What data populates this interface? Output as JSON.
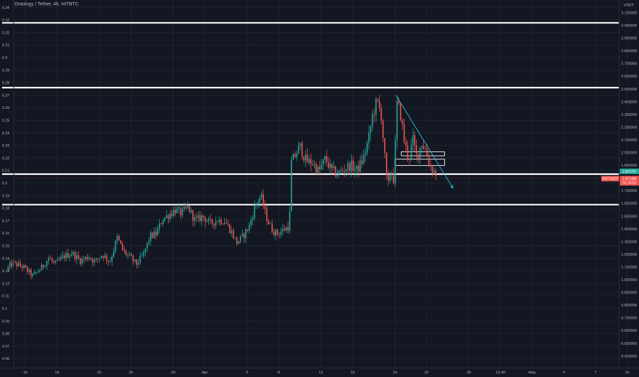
{
  "title": "Ontology / Tether, 4h, HITBTC",
  "colors": {
    "background": "#131722",
    "grid": "#1f2330",
    "up": "#26a69a",
    "down": "#ef5350",
    "level_line": "#ffffff",
    "trendline": "#26c6da",
    "axis_text": "#b2b5be"
  },
  "chart_data": {
    "type": "candlestick",
    "grid": true,
    "left_axis": {
      "ticks": [
        "0.34",
        "0.33",
        "0.32",
        "0.31",
        "0.3",
        "0.29",
        "0.28",
        "0.27",
        "0.26",
        "0.25",
        "0.24",
        "0.23",
        "0.22",
        "0.21",
        "0.2",
        "0.19",
        "0.18",
        "0.17",
        "0.16",
        "0.15",
        "0.14",
        "0.13",
        "0.12",
        "0.11",
        "0.1",
        "0.09",
        "0.08",
        "0.07",
        "0.06"
      ]
    },
    "right_axis": {
      "unit": "USDT",
      "ticks": [
        "3.100000",
        "3.000000",
        "2.900000",
        "2.800000",
        "2.700000",
        "2.600000",
        "2.500000",
        "2.400000",
        "2.300000",
        "2.200000",
        "2.100000",
        "2.000000",
        "1.900000",
        "1.800000",
        "1.700000",
        "1.600000",
        "1.500000",
        "1.400000",
        "1.300000",
        "1.200000",
        "1.100000",
        "1.000000",
        "0.900000",
        "0.800000",
        "0.700000",
        "0.600000",
        "0.500000",
        "0.400000"
      ]
    },
    "x_axis": {
      "ticks": [
        {
          "label": "15",
          "day": 15
        },
        {
          "label": "18",
          "day": 18
        },
        {
          "label": "22",
          "day": 22
        },
        {
          "label": "25",
          "day": 25
        },
        {
          "label": "29",
          "day": 29
        },
        {
          "label": "Apr",
          "day": 32
        },
        {
          "label": "5",
          "day": 36
        },
        {
          "label": "8",
          "day": 39
        },
        {
          "label": "12",
          "day": 43
        },
        {
          "label": "15",
          "day": 46
        },
        {
          "label": "19",
          "day": 50
        },
        {
          "label": "22",
          "day": 53
        },
        {
          "label": "26",
          "day": 57
        },
        {
          "label": "12:30",
          "day": 60
        },
        {
          "label": "May",
          "day": 63
        },
        {
          "label": "4",
          "day": 66
        },
        {
          "label": "7",
          "day": 69
        },
        {
          "label": "10",
          "day": 72
        }
      ]
    },
    "price_path": [
      [
        13.2,
        1.08
      ],
      [
        13.8,
        1.13
      ],
      [
        14.8,
        1.1
      ],
      [
        15.7,
        1.03
      ],
      [
        16.5,
        1.09
      ],
      [
        17.2,
        1.17
      ],
      [
        17.8,
        1.12
      ],
      [
        18.6,
        1.18
      ],
      [
        19.4,
        1.21
      ],
      [
        20.2,
        1.15
      ],
      [
        21.0,
        1.18
      ],
      [
        21.6,
        1.14
      ],
      [
        22.3,
        1.2
      ],
      [
        23.0,
        1.14
      ],
      [
        23.7,
        1.33
      ],
      [
        24.3,
        1.22
      ],
      [
        25.0,
        1.17
      ],
      [
        25.5,
        1.12
      ],
      [
        26.2,
        1.2
      ],
      [
        26.8,
        1.34
      ],
      [
        27.4,
        1.36
      ],
      [
        28.0,
        1.48
      ],
      [
        28.6,
        1.51
      ],
      [
        29.2,
        1.55
      ],
      [
        29.8,
        1.52
      ],
      [
        30.4,
        1.57
      ],
      [
        31.1,
        1.46
      ],
      [
        31.8,
        1.5
      ],
      [
        32.5,
        1.44
      ],
      [
        33.2,
        1.47
      ],
      [
        33.9,
        1.46
      ],
      [
        34.5,
        1.38
      ],
      [
        35.0,
        1.29
      ],
      [
        35.6,
        1.34
      ],
      [
        36.2,
        1.42
      ],
      [
        36.8,
        1.59
      ],
      [
        37.3,
        1.66
      ],
      [
        37.8,
        1.5
      ],
      [
        38.3,
        1.4
      ],
      [
        38.8,
        1.36
      ],
      [
        39.4,
        1.39
      ],
      [
        40.0,
        1.42
      ],
      [
        40.2,
        1.92
      ],
      [
        41.0,
        2.05
      ],
      [
        41.6,
        1.93
      ],
      [
        42.2,
        1.92
      ],
      [
        42.8,
        1.85
      ],
      [
        43.4,
        1.95
      ],
      [
        44.0,
        1.86
      ],
      [
        44.6,
        1.83
      ],
      [
        45.2,
        1.87
      ],
      [
        45.8,
        1.9
      ],
      [
        46.4,
        1.86
      ],
      [
        47.0,
        1.95
      ],
      [
        47.5,
        2.1
      ],
      [
        47.9,
        2.3
      ],
      [
        48.3,
        2.4
      ],
      [
        48.7,
        2.3
      ],
      [
        49.0,
        2.0
      ],
      [
        49.3,
        1.7
      ],
      [
        49.6,
        1.88
      ],
      [
        49.9,
        1.78
      ],
      [
        50.2,
        2.38
      ],
      [
        50.5,
        2.32
      ],
      [
        50.9,
        2.08
      ],
      [
        51.3,
        1.95
      ],
      [
        51.7,
        2.1
      ],
      [
        52.1,
        1.95
      ],
      [
        52.5,
        2.08
      ],
      [
        52.9,
        2.02
      ],
      [
        53.3,
        1.9
      ],
      [
        53.7,
        1.85
      ],
      [
        54.0,
        1.82
      ]
    ],
    "last_price": 1.8228,
    "horizontal_lines": [
      3.02,
      2.51,
      1.83,
      1.59
    ],
    "trendline": {
      "from": [
        50.1,
        2.45
      ],
      "to": [
        55.5,
        1.72
      ]
    },
    "zones": [
      {
        "day_start": 50.6,
        "day_end": 54.7,
        "top": 2.006,
        "bottom": 1.974
      },
      {
        "day_start": 50.0,
        "day_end": 54.7,
        "top": 1.948,
        "bottom": 1.898
      }
    ],
    "badges": [
      {
        "label": "1.822757",
        "price": 1.852,
        "color": "#26a69a"
      },
      {
        "label": "ONTUSDT",
        "price": 1.795,
        "color": "#ef5350"
      },
      {
        "label": "1.871086",
        "price": 1.795,
        "color": "#ef5350"
      },
      {
        "label": "01:24:53",
        "price": 1.762,
        "color": "#ef5350"
      }
    ]
  }
}
